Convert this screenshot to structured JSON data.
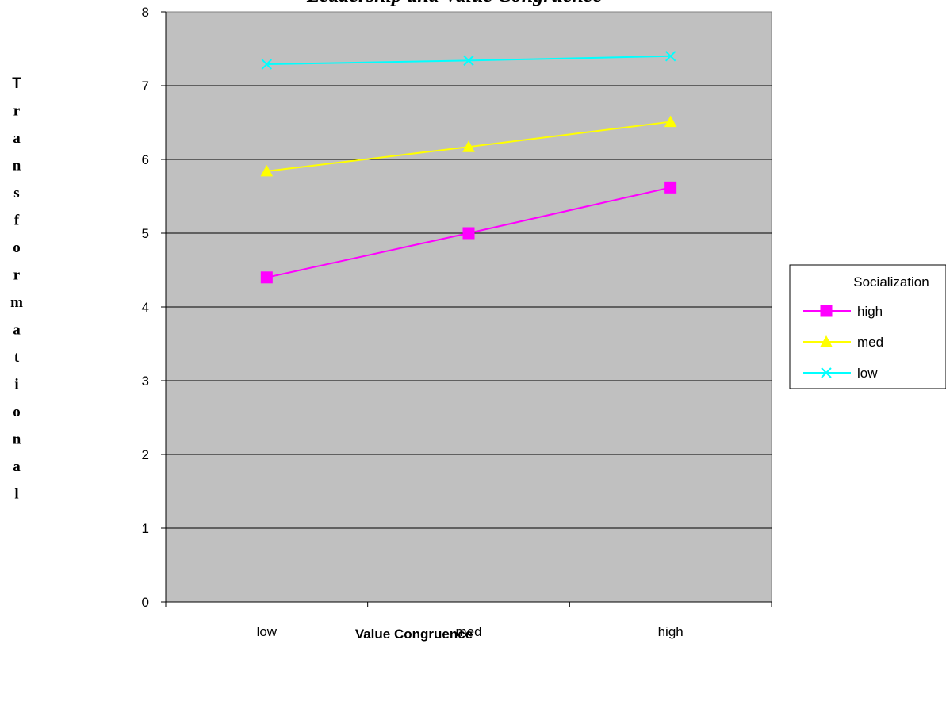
{
  "chart_data": {
    "type": "line",
    "title": "Leadership and Value Congruence",
    "xlabel": "Value Congruence",
    "ylabel": "Transformational",
    "categories": [
      "low",
      "med",
      "high"
    ],
    "ylim": [
      0,
      8
    ],
    "yticks": [
      "0",
      "1",
      "2",
      "3",
      "4",
      "5",
      "6",
      "7",
      "8"
    ],
    "grid": true,
    "plot_background": "#c0c0c0",
    "legend": {
      "title": "Socialization",
      "placement": "right"
    },
    "series": [
      {
        "name": "high",
        "values": [
          4.4,
          5.0,
          5.62
        ],
        "color": "#ff00ff",
        "marker": "square"
      },
      {
        "name": "med",
        "values": [
          5.84,
          6.17,
          6.51
        ],
        "color": "#ffff00",
        "marker": "triangle"
      },
      {
        "name": "low",
        "values": [
          7.29,
          7.34,
          7.4
        ],
        "color": "#00ffff",
        "marker": "x"
      }
    ]
  }
}
